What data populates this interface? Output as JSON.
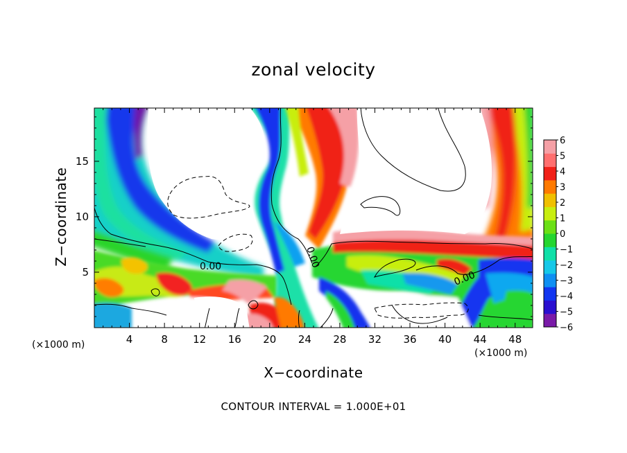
{
  "chart_data": {
    "type": "heatmap",
    "title": "zonal velocity",
    "xlabel": "X−coordinate",
    "ylabel": "Z−coordinate",
    "x_unit_left": "(×1000 m)",
    "x_unit_right": "(×1000 m)",
    "x_ticks": [
      "4",
      "8",
      "12",
      "16",
      "20",
      "24",
      "28",
      "32",
      "36",
      "40",
      "44",
      "48"
    ],
    "x_tick_values": [
      4,
      8,
      12,
      16,
      20,
      24,
      28,
      32,
      36,
      40,
      44,
      48
    ],
    "y_ticks": [
      "5",
      "10",
      "15"
    ],
    "y_tick_values": [
      5,
      10,
      15
    ],
    "xlim": [
      0,
      50
    ],
    "ylim": [
      0,
      19.8
    ],
    "colorbar": {
      "labels": [
        "6",
        "5",
        "4",
        "3",
        "2",
        "1",
        "0",
        "−1",
        "−2",
        "−3",
        "−4",
        "−5",
        "−6"
      ],
      "range": [
        -6,
        6
      ],
      "colors": [
        "#7a1aa8",
        "#2a0fd0",
        "#1236f0",
        "#0f8ff2",
        "#16c8e8",
        "#10e0a8",
        "#25d630",
        "#6be015",
        "#c8ee10",
        "#f0c000",
        "#ff7a00",
        "#f12018",
        "#ff6f6f",
        "#f5a0a6"
      ]
    },
    "contour_labels": [
      "0.00",
      "0.00",
      "0.00"
    ],
    "footnote": "CONTOUR INTERVAL = 1.000E+01"
  }
}
